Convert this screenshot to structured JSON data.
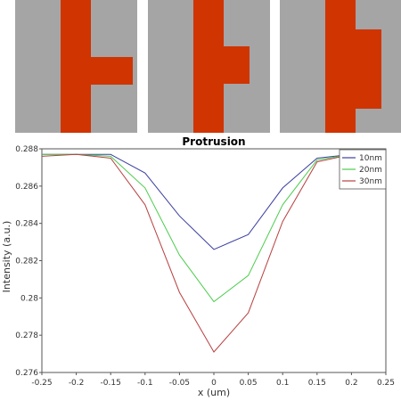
{
  "colors": {
    "background": "#a5a5a5",
    "feature": "#d03400"
  },
  "protrusion_panels": [
    {
      "label": "10nm",
      "protrusion_nm": 10
    },
    {
      "label": "20nm",
      "protrusion_nm": 20
    },
    {
      "label": "30nm",
      "protrusion_nm": 30
    }
  ],
  "chart_data": {
    "type": "line",
    "title": "Protrusion",
    "xlabel": "x (um)",
    "ylabel": "Intensity (a.u.)",
    "xlim": [
      -0.25,
      0.25
    ],
    "ylim": [
      0.276,
      0.288
    ],
    "grid": true,
    "legend_position": "top-right",
    "xticks": [
      "-0.25",
      "-0.2",
      "-0.15",
      "-0.1",
      "-0.05",
      "0",
      "0.05",
      "0.1",
      "0.15",
      "0.2",
      "0.25"
    ],
    "yticks": [
      "0.276",
      "0.278",
      "0.28",
      "0.282",
      "0.284",
      "0.286",
      "0.288"
    ],
    "x": [
      -0.25,
      -0.2,
      -0.15,
      -0.1,
      -0.05,
      0,
      0.05,
      0.1,
      0.15,
      0.2,
      0.25
    ],
    "series": [
      {
        "name": "10nm",
        "color": "#3b3fa0",
        "values": [
          0.2877,
          0.2877,
          0.2877,
          0.2867,
          0.2844,
          0.2826,
          0.2834,
          0.2859,
          0.2875,
          0.2877,
          0.2877
        ]
      },
      {
        "name": "20nm",
        "color": "#4ccc4c",
        "values": [
          0.2877,
          0.2877,
          0.2876,
          0.2859,
          0.2823,
          0.2798,
          0.2812,
          0.285,
          0.2874,
          0.2877,
          0.2877
        ]
      },
      {
        "name": "30nm",
        "color": "#b84040",
        "values": [
          0.2876,
          0.2877,
          0.2875,
          0.285,
          0.2803,
          0.2771,
          0.2792,
          0.2841,
          0.2873,
          0.2877,
          0.2877
        ]
      }
    ]
  }
}
